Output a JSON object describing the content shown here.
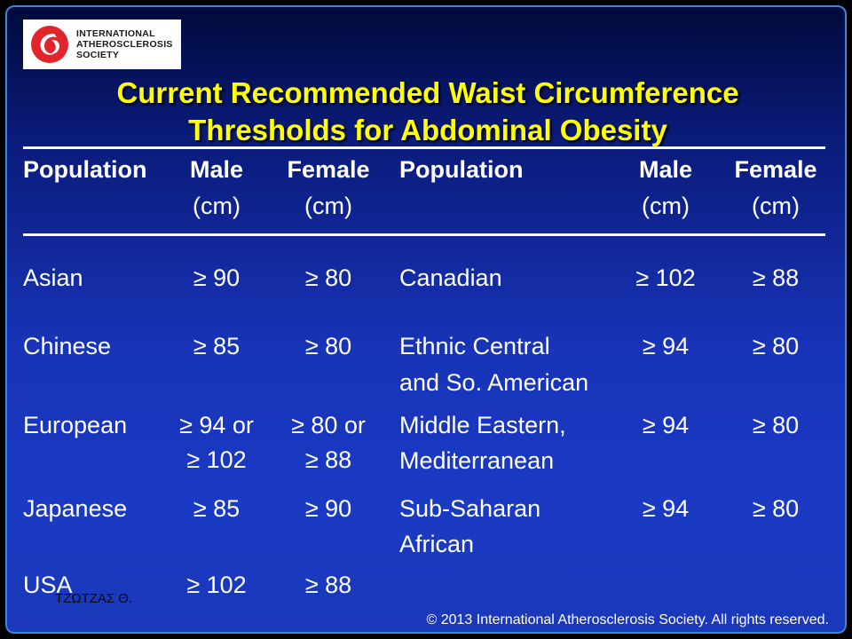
{
  "logo": {
    "line1": "INTERNATIONAL",
    "line2": "ATHEROSCLEROSIS",
    "line3": "SOCIETY"
  },
  "title": {
    "line1": "Current Recommended Waist Circumference",
    "line2": "Thresholds for Abdominal Obesity"
  },
  "headers": {
    "population": "Population",
    "male": "Male",
    "female": "Female",
    "unit": "(cm)"
  },
  "left_rows": [
    {
      "population": "Asian",
      "male": [
        "≥ 90"
      ],
      "female": [
        "≥ 80"
      ]
    },
    {
      "population": "Chinese",
      "male": [
        "≥ 85"
      ],
      "female": [
        "≥ 80"
      ]
    },
    {
      "population": "European",
      "male": [
        "≥ 94 or",
        "≥ 102"
      ],
      "female": [
        "≥ 80 or",
        "≥ 88"
      ]
    },
    {
      "population": "Japanese",
      "male": [
        "≥ 85"
      ],
      "female": [
        "≥ 90"
      ]
    },
    {
      "population": "USA",
      "male": [
        "≥ 102"
      ],
      "female": [
        "≥ 88"
      ]
    }
  ],
  "right_rows": [
    {
      "population": [
        "Canadian"
      ],
      "male": "≥ 102",
      "female": "≥ 88"
    },
    {
      "population": [
        "Ethnic Central",
        "and So. American"
      ],
      "male": "≥ 94",
      "female": "≥ 80"
    },
    {
      "population": [
        "Middle Eastern,",
        "Mediterranean"
      ],
      "male": "≥ 94",
      "female": "≥ 80"
    },
    {
      "population": [
        "Sub-Saharan",
        "African"
      ],
      "male": "≥ 94",
      "female": "≥ 80"
    }
  ],
  "watermark": "ΤΖΩΤΖΑΣ Θ.",
  "footer": "© 2013 International Atherosclerosis Society. All rights reserved.",
  "colors": {
    "title": "#ffff00",
    "text": "#ffffff",
    "logo_red": "#e0262b",
    "border": "#3a86d8"
  }
}
